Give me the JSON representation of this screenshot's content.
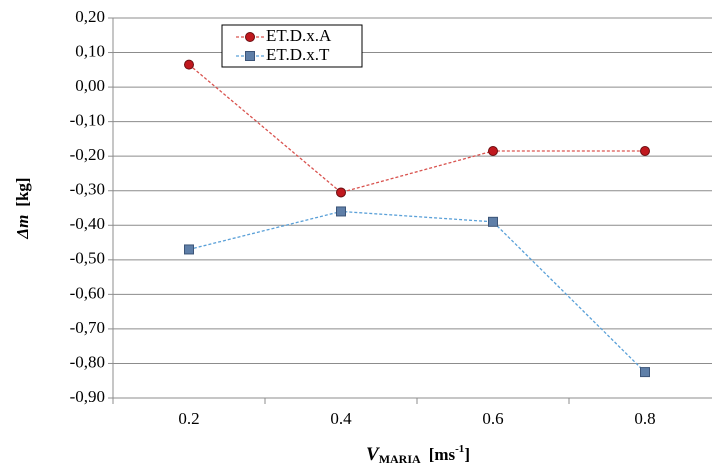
{
  "chart_data": {
    "type": "line",
    "xlabel": {
      "symbol": "V",
      "subscript": "MARIA",
      "unit": "[ms",
      "unit_exponent": "-1",
      "unit_close": "]"
    },
    "ylabel": {
      "symbol": "Δm",
      "unit": "[kg]"
    },
    "categories": [
      "0.2",
      "0.4",
      "0.6",
      "0.8"
    ],
    "series": [
      {
        "name": "ET.D.x.A",
        "color": "#c0181e",
        "line_color": "#d9534f",
        "marker": "circle",
        "values": [
          0.065,
          -0.305,
          -0.185,
          -0.185
        ]
      },
      {
        "name": "ET.D.x.T",
        "color": "#5f7fa8",
        "line_color": "#5aa0d8",
        "marker": "square",
        "values": [
          -0.47,
          -0.36,
          -0.39,
          -0.825
        ]
      }
    ],
    "ylim": [
      -0.9,
      0.2
    ],
    "yticks": [
      {
        "value": -0.9,
        "label": "-0,90"
      },
      {
        "value": -0.8,
        "label": "-0,80"
      },
      {
        "value": -0.7,
        "label": "-0,70"
      },
      {
        "value": -0.6,
        "label": "-0,60"
      },
      {
        "value": -0.5,
        "label": "-0,50"
      },
      {
        "value": -0.4,
        "label": "-0,40"
      },
      {
        "value": -0.3,
        "label": "-0,30"
      },
      {
        "value": -0.2,
        "label": "-0,20"
      },
      {
        "value": -0.1,
        "label": "-0,10"
      },
      {
        "value": 0,
        "label": "0,00"
      },
      {
        "value": 0.1,
        "label": "0,10"
      },
      {
        "value": 0.2,
        "label": "0,20"
      }
    ],
    "grid": true,
    "legend": "top-left"
  }
}
